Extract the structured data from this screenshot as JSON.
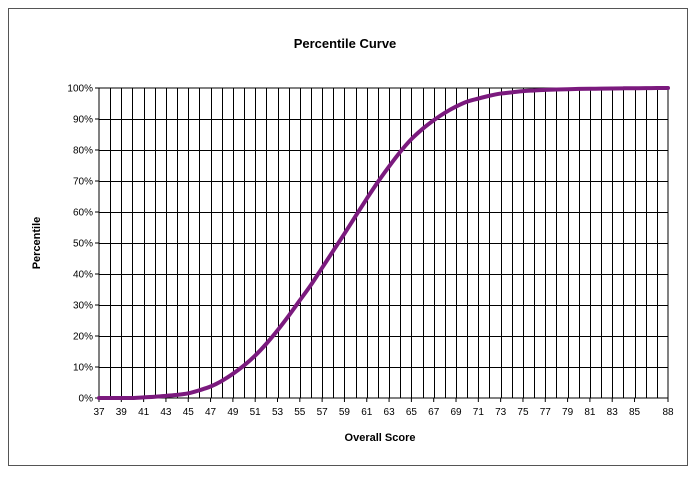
{
  "chart_data": {
    "type": "line",
    "title": "Percentile Curve",
    "xlabel": "Overall Score",
    "ylabel": "Percentile",
    "xlim": [
      37,
      88
    ],
    "ylim": [
      0,
      100
    ],
    "x_tick_labels": [
      "37",
      "39",
      "41",
      "43",
      "45",
      "47",
      "49",
      "51",
      "53",
      "55",
      "57",
      "59",
      "61",
      "63",
      "65",
      "67",
      "69",
      "71",
      "73",
      "75",
      "77",
      "79",
      "81",
      "83",
      "85",
      "88"
    ],
    "y_tick_labels": [
      "0%",
      "10%",
      "20%",
      "30%",
      "40%",
      "50%",
      "60%",
      "70%",
      "80%",
      "90%",
      "100%"
    ],
    "grid": true,
    "legend": "none",
    "line_color": "#7b1a7e",
    "series": [
      {
        "x": [
          37,
          38,
          39,
          40,
          41,
          42,
          43,
          44,
          45,
          46,
          47,
          48,
          49,
          50,
          51,
          52,
          53,
          54,
          55,
          56,
          57,
          58,
          59,
          60,
          61,
          62,
          63,
          64,
          65,
          66,
          67,
          68,
          69,
          70,
          71,
          72,
          73,
          74,
          75,
          76,
          77,
          78,
          79,
          80,
          81,
          82,
          83,
          84,
          85,
          86,
          87,
          88
        ],
        "values": [
          0,
          0,
          0,
          0,
          0.2,
          0.4,
          0.7,
          1,
          1.5,
          2.5,
          3.7,
          5.5,
          7.8,
          10.5,
          13.7,
          17.5,
          21.8,
          26.5,
          31.5,
          36.5,
          42,
          47.5,
          53,
          58.7,
          64.3,
          69.7,
          74.7,
          79.4,
          83.5,
          86.8,
          89.6,
          92,
          94,
          95.6,
          96.6,
          97.5,
          98.2,
          98.6,
          99,
          99.2,
          99.4,
          99.5,
          99.6,
          99.7,
          99.75,
          99.8,
          99.85,
          99.9,
          99.93,
          99.95,
          99.98,
          100
        ]
      }
    ]
  }
}
